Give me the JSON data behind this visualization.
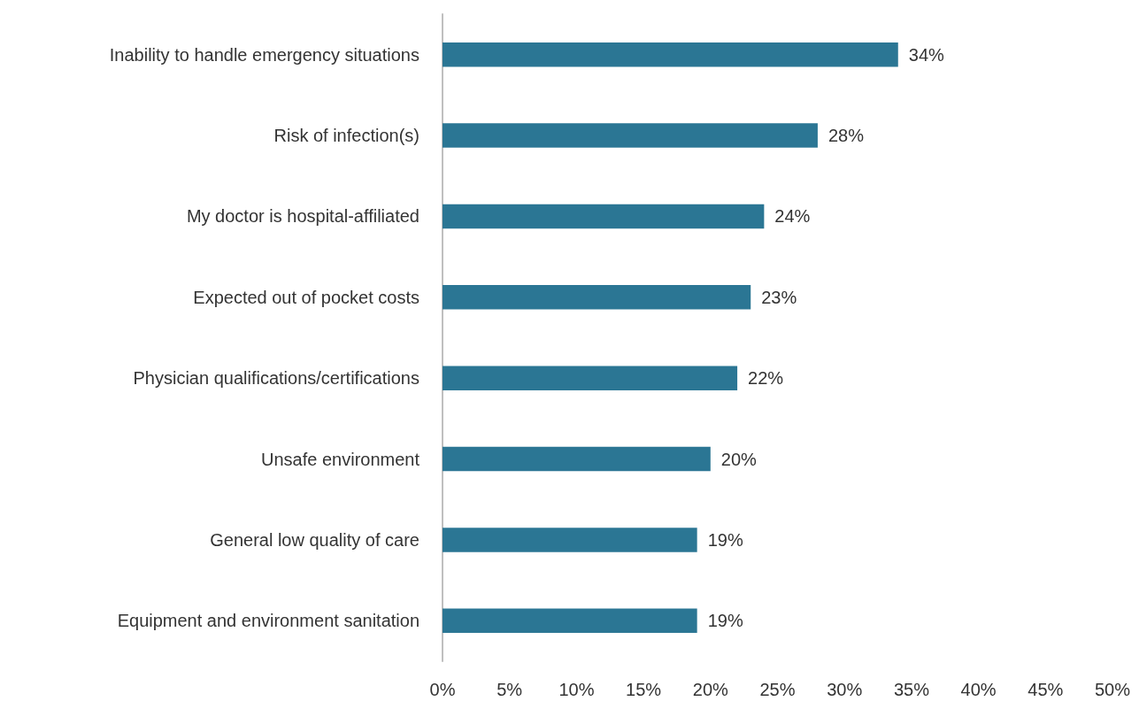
{
  "chart_data": {
    "type": "bar",
    "orientation": "horizontal",
    "categories": [
      "Inability to handle emergency situations",
      "Risk of infection(s)",
      "My doctor is hospital-affiliated",
      "Expected out of pocket costs",
      "Physician qualifications/certifications",
      "Unsafe environment",
      "General low quality of care",
      "Equipment and environment sanitation"
    ],
    "values": [
      34,
      28,
      24,
      23,
      22,
      20,
      19,
      19
    ],
    "value_labels": [
      "34%",
      "28%",
      "24%",
      "23%",
      "22%",
      "20%",
      "19%",
      "19%"
    ],
    "color": "#2b7694",
    "xlim": [
      0,
      50
    ],
    "xticks": [
      {
        "value": 0,
        "label": "0%"
      },
      {
        "value": 5,
        "label": "5%"
      },
      {
        "value": 10,
        "label": "10%"
      },
      {
        "value": 15,
        "label": "15%"
      },
      {
        "value": 20,
        "label": "20%"
      },
      {
        "value": 25,
        "label": "25%"
      },
      {
        "value": 30,
        "label": "30%"
      },
      {
        "value": 35,
        "label": "35%"
      },
      {
        "value": 40,
        "label": "40%"
      },
      {
        "value": 45,
        "label": "45%"
      },
      {
        "value": 50,
        "label": "50%"
      }
    ],
    "grid": false
  }
}
